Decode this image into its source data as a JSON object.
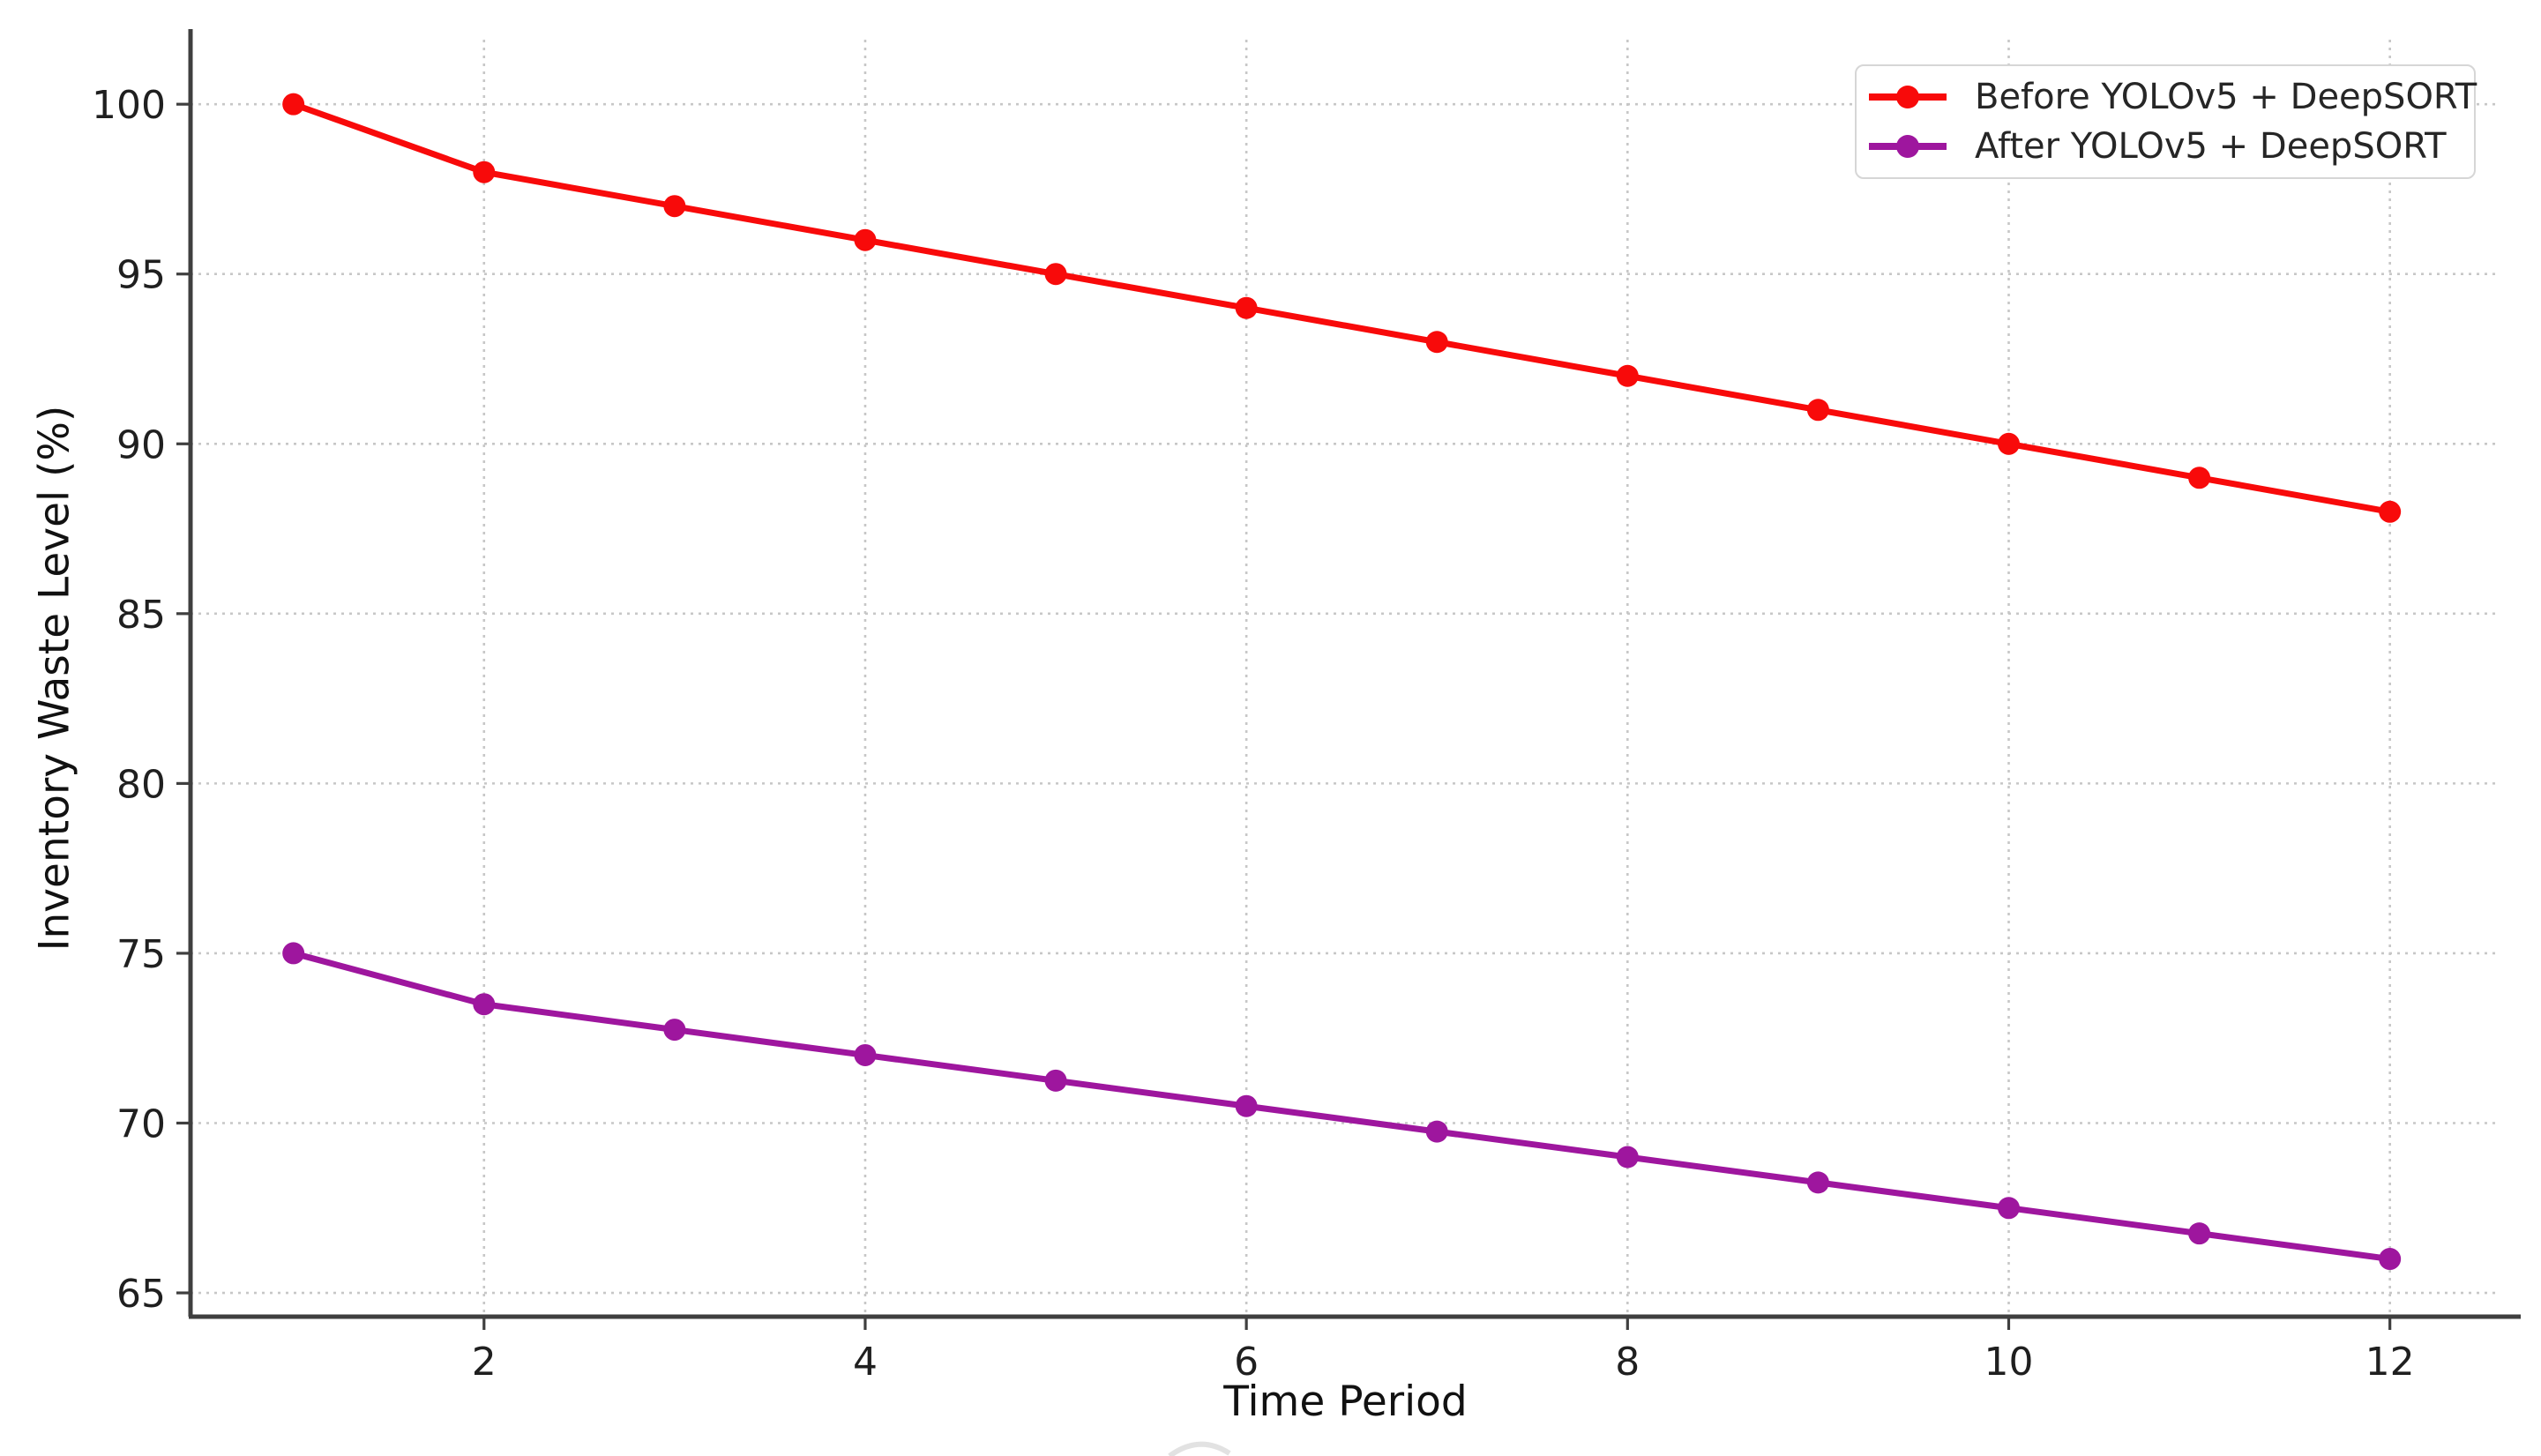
{
  "chart_data": {
    "type": "line",
    "title": "",
    "xlabel": "Time Period",
    "ylabel": "Inventory Waste Level (%)",
    "x": [
      1,
      2,
      3,
      4,
      5,
      6,
      7,
      8,
      9,
      10,
      11,
      12
    ],
    "series": [
      {
        "name": "Before YOLOv5 + DeepSORT",
        "color": "#f80a0a",
        "values": [
          100,
          98,
          97,
          96,
          95,
          94,
          93,
          92,
          91,
          90,
          89,
          88
        ]
      },
      {
        "name": "After YOLOv5 + DeepSORT",
        "color": "#9e169e",
        "values": [
          75,
          73.5,
          72.75,
          72,
          71.25,
          70.5,
          69.75,
          69,
          68.25,
          67.5,
          66.75,
          66
        ]
      }
    ],
    "xlim": [
      0.46,
      12.58
    ],
    "ylim": [
      64.3,
      101.9
    ],
    "xticks": [
      2,
      4,
      6,
      8,
      10,
      12
    ],
    "yticks": [
      65,
      70,
      75,
      80,
      85,
      90,
      95,
      100
    ],
    "grid": "dotted",
    "legend_position": "upper right",
    "marker": "circle",
    "line_width": 7,
    "marker_radius": 12.5
  }
}
